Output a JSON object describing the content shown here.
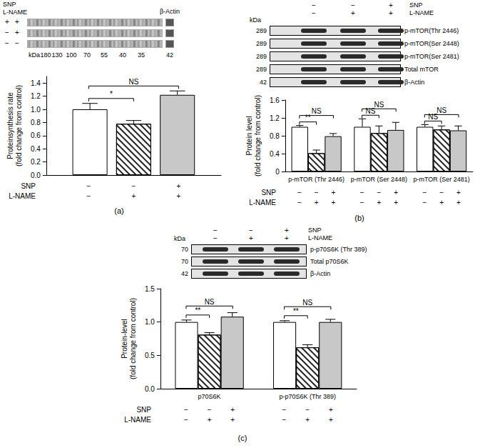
{
  "panels": [
    {
      "label": "(a)",
      "blot": {
        "treatment_labels": [
          "SNP",
          "L-NAME"
        ],
        "lanes": [
          [
            "+",
            "+"
          ],
          [
            "−",
            "+"
          ],
          [
            "−",
            "−"
          ]
        ],
        "marker_label": "kDa",
        "markers": [
          180,
          130,
          100,
          70,
          55,
          40,
          35
        ],
        "loading": {
          "label": "β-Actin",
          "kda": 42
        }
      }
    },
    {
      "label": "(b)",
      "blot": {
        "header": [
          {
            "name": "SNP",
            "marks": [
              "−",
              "−",
              "+"
            ]
          },
          {
            "name": "L-NAME",
            "marks": [
              "−",
              "+",
              "+"
            ]
          }
        ],
        "kda_label": "kDa",
        "rows": [
          {
            "kda": 289,
            "label": "p-mTOR(Thr 2446)"
          },
          {
            "kda": 289,
            "label": "p-mTOR(Ser 2448)"
          },
          {
            "kda": 289,
            "label": "p-mTOR(Ser 2481)"
          },
          {
            "kda": 289,
            "label": "Total mTOR"
          },
          {
            "kda": 42,
            "label": "β-Actin"
          }
        ]
      }
    },
    {
      "label": "(c)",
      "blot": {
        "header": [
          {
            "name": "SNP",
            "marks": [
              "−",
              "−",
              "+"
            ]
          },
          {
            "name": "L-NAME",
            "marks": [
              "−",
              "+",
              "+"
            ]
          }
        ],
        "kda_label": "kDa",
        "rows": [
          {
            "kda": 70,
            "label": "p-p70S6K (Thr 389)"
          },
          {
            "kda": 70,
            "label": "Total p70S6K"
          },
          {
            "kda": 42,
            "label": "β-Actin"
          }
        ]
      }
    }
  ],
  "chart_data": [
    {
      "type": "bar",
      "ylabel": "Proteinsynthesis rate\n(fold change from control)",
      "categories": [
        null
      ],
      "series": [
        {
          "color": "#ffffff",
          "values": [
            1.0
          ],
          "errors": [
            0.09
          ]
        },
        {
          "color": "#ffffff",
          "values": [
            0.78
          ],
          "errors": [
            0.05
          ]
        },
        {
          "color": "#c8c8c8",
          "values": [
            1.22
          ],
          "errors": [
            0.06
          ]
        }
      ],
      "ylim": [
        0,
        1.5
      ],
      "yticks": [
        {
          "value": 0,
          "label": "0.0"
        },
        {
          "value": 0.2,
          "label": "0.2"
        },
        {
          "value": 0.4,
          "label": "0.4"
        },
        {
          "value": 0.6,
          "label": "0.6"
        },
        {
          "value": 0.8,
          "label": "0.8"
        },
        {
          "value": 1,
          "label": "1.0"
        },
        {
          "value": 1.2,
          "label": "1.2"
        },
        {
          "value": 1.4,
          "label": "1.4"
        }
      ],
      "treatments": [
        {
          "name": "SNP",
          "marks": [
            "−",
            "−",
            "+"
          ]
        },
        {
          "name": "L-NAME",
          "marks": [
            "−",
            "+",
            "+"
          ]
        }
      ],
      "annotations": [
        {
          "text": "*",
          "category": 0,
          "from": 0,
          "to": 1
        },
        {
          "text": "NS",
          "category": 0,
          "from": 0,
          "to": 2
        }
      ],
      "grid": false
    },
    {
      "type": "bar",
      "ylabel": "Protein level\n(fold change from control)",
      "categories": [
        "p-mTOR (Thr 2446)",
        "p-mTOR (Ser 2448)",
        "p-mTOR (Ser 2481)"
      ],
      "series": [
        {
          "color": "#ffffff",
          "values": [
            1.0,
            1.0,
            1.0
          ],
          "errors": [
            0.03,
            0.18,
            0.05
          ]
        },
        {
          "color": "#ffffff",
          "values": [
            0.41,
            0.86,
            0.94
          ],
          "errors": [
            0.07,
            0.16,
            0.08
          ]
        },
        {
          "color": "#c8c8c8",
          "values": [
            0.79,
            0.93,
            0.92
          ],
          "errors": [
            0.06,
            0.17,
            0.1
          ]
        }
      ],
      "ylim": [
        0,
        1.6
      ],
      "yticks": [
        0,
        0.4,
        0.8,
        1.2,
        1.6
      ],
      "treatments": [
        {
          "name": "SNP",
          "marks": [
            "−",
            "−",
            "+"
          ]
        },
        {
          "name": "L-NAME",
          "marks": [
            "−",
            "+",
            "+"
          ]
        }
      ],
      "annotations": [
        {
          "text": "**",
          "category": 0,
          "from": 0,
          "to": 1
        },
        {
          "text": "NS",
          "category": 0,
          "from": 0,
          "to": 2
        },
        {
          "text": "NS",
          "category": 1,
          "from": 0,
          "to": 1
        },
        {
          "text": "NS",
          "category": 1,
          "from": 0,
          "to": 2
        },
        {
          "text": "NS",
          "category": 2,
          "from": 0,
          "to": 1
        },
        {
          "text": "NS",
          "category": 2,
          "from": 0,
          "to": 2
        }
      ],
      "grid": false
    },
    {
      "type": "bar",
      "ylabel": "Protein-level\n(fold change from control)",
      "categories": [
        "p70S6K",
        "p-p70S6K (Thr 389)"
      ],
      "series": [
        {
          "color": "#ffffff",
          "values": [
            1.0,
            1.0
          ],
          "errors": [
            0.03,
            0.02
          ]
        },
        {
          "color": "#ffffff",
          "values": [
            0.81,
            0.62
          ],
          "errors": [
            0.03,
            0.04
          ]
        },
        {
          "color": "#c8c8c8",
          "values": [
            1.08,
            1.0
          ],
          "errors": [
            0.06,
            0.04
          ]
        }
      ],
      "ylim": [
        0,
        1.5
      ],
      "yticks": [
        {
          "value": 0,
          "label": "0.0"
        },
        {
          "value": 0.5,
          "label": "0.5"
        },
        {
          "value": 1,
          "label": "1.0"
        },
        {
          "value": 1.5,
          "label": "1.5"
        }
      ],
      "treatments": [
        {
          "name": "SNP",
          "marks": [
            "−",
            "−",
            "+"
          ]
        },
        {
          "name": "L-NAME",
          "marks": [
            "−",
            "+",
            "+"
          ]
        }
      ],
      "annotations": [
        {
          "text": "**",
          "category": 0,
          "from": 0,
          "to": 1
        },
        {
          "text": "NS",
          "category": 0,
          "from": 0,
          "to": 2
        },
        {
          "text": "**",
          "category": 1,
          "from": 0,
          "to": 1
        },
        {
          "text": "NS",
          "category": 1,
          "from": 0,
          "to": 2
        }
      ],
      "grid": false
    }
  ]
}
